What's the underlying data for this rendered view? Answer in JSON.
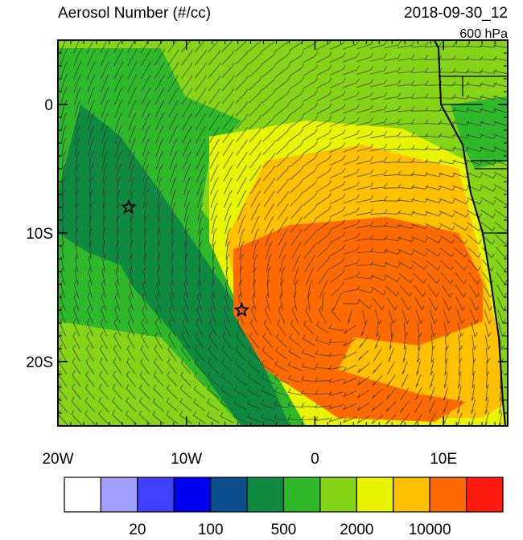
{
  "chart_data": {
    "type": "map",
    "title": "Aerosol Number (#/cc)",
    "date": "2018-09-30_12",
    "level": "600 hPa",
    "xlim": [
      -20,
      15
    ],
    "ylim": [
      -25,
      5
    ],
    "xticks": [
      {
        "value": -20,
        "label": "20W"
      },
      {
        "value": -10,
        "label": "10W"
      },
      0,
      {
        "value": 10,
        "label": "10E"
      }
    ],
    "yticks": [
      0,
      {
        "value": -10,
        "label": "10S"
      },
      {
        "value": -20,
        "label": "20S"
      }
    ],
    "markers": [
      {
        "lon": -14.5,
        "lat": -8
      },
      {
        "lon": -5.7,
        "lat": -16
      }
    ],
    "colorbar": {
      "colors": [
        "#ffffff",
        "#a0a0ff",
        "#4040ff",
        "#0000f0",
        "#0b4f8f",
        "#0f8a40",
        "#2fb82a",
        "#86d418",
        "#e8f500",
        "#ffc000",
        "#ff6a00",
        "#ff1a10"
      ],
      "labels": [
        20,
        100,
        500,
        2000,
        10000
      ]
    }
  }
}
